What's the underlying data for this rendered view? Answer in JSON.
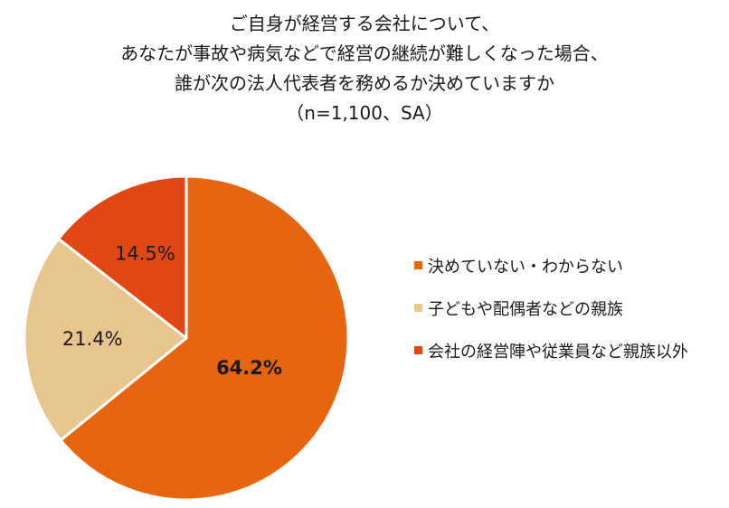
{
  "chart_data": {
    "type": "pie",
    "title_lines": [
      "ご自身が経営する会社について、",
      "あなたが事故や病気などで経営の継続が難しくなった場合、",
      "誰が次の法人代表者を務めるか決めていますか",
      "（n=1,100、SA）"
    ],
    "slices": [
      {
        "label": "決めていない・わからない",
        "value": 64.2,
        "display": "64.2%",
        "color": "#E8650F",
        "bold": true
      },
      {
        "label": "子どもや配偶者などの親族",
        "value": 21.4,
        "display": "21.4%",
        "color": "#E8C48E",
        "bold": false
      },
      {
        "label": "会社の経営陣や従業員など親族以外",
        "value": 14.5,
        "display": "14.5%",
        "color": "#E04715",
        "bold": false
      }
    ],
    "start": "12 o'clock",
    "direction": "clockwise",
    "legend_position": "right"
  }
}
